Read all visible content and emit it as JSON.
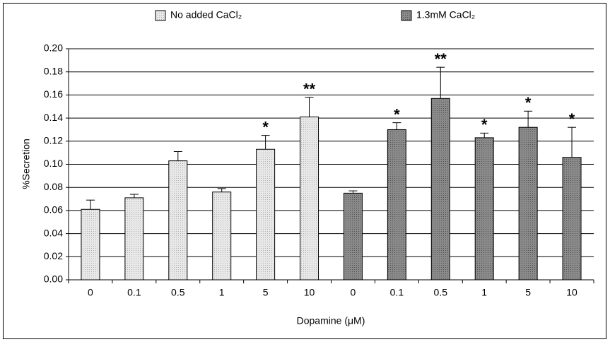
{
  "chart_data": {
    "type": "bar",
    "categories": [
      "0",
      "0.1",
      "0.5",
      "1",
      "5",
      "10",
      "0",
      "0.1",
      "0.5",
      "1",
      "5",
      "10"
    ],
    "series": [
      {
        "name": "No added CaCl₂",
        "color": "#dcdcdc",
        "values": [
          0.061,
          0.071,
          0.103,
          0.076,
          0.113,
          0.141,
          null,
          null,
          null,
          null,
          null,
          null
        ],
        "errors": [
          0.008,
          0.003,
          0.008,
          0.003,
          0.012,
          0.017,
          null,
          null,
          null,
          null,
          null,
          null
        ],
        "annotations": [
          null,
          null,
          null,
          null,
          "*",
          "**",
          null,
          null,
          null,
          null,
          null,
          null
        ]
      },
      {
        "name": "1.3mM CaCl₂",
        "color": "#7f7f7f",
        "values": [
          null,
          null,
          null,
          null,
          null,
          null,
          0.075,
          0.13,
          0.157,
          0.123,
          0.132,
          0.106
        ],
        "errors": [
          null,
          null,
          null,
          null,
          null,
          null,
          0.002,
          0.006,
          0.027,
          0.004,
          0.014,
          0.026
        ],
        "annotations": [
          null,
          null,
          null,
          null,
          null,
          null,
          null,
          "*",
          "**",
          "*",
          "*",
          "*"
        ]
      }
    ],
    "x_label": "Dopamine (μM)",
    "y_label": "%Secretion",
    "ylim": [
      0,
      0.2
    ],
    "yticks": [
      {
        "value": 0,
        "label": "0.00"
      },
      {
        "value": 0.02,
        "label": "0.02"
      },
      {
        "value": 0.04,
        "label": "0.04"
      },
      {
        "value": 0.06,
        "label": "0.06"
      },
      {
        "value": 0.08,
        "label": "0.08"
      },
      {
        "value": 0.1,
        "label": "0.10"
      },
      {
        "value": 0.12,
        "label": "0.12"
      },
      {
        "value": 0.14,
        "label": "0.14"
      },
      {
        "value": 0.16,
        "label": "0.16"
      },
      {
        "value": 0.18,
        "label": "0.18"
      },
      {
        "value": 0.2,
        "label": "0.20"
      }
    ],
    "grid": true
  }
}
